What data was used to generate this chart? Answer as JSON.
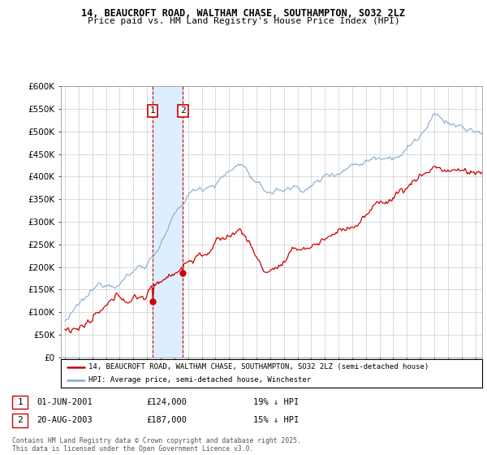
{
  "title1": "14, BEAUCROFT ROAD, WALTHAM CHASE, SOUTHAMPTON, SO32 2LZ",
  "title2": "Price paid vs. HM Land Registry's House Price Index (HPI)",
  "ylim": [
    0,
    600000
  ],
  "yticks": [
    0,
    50000,
    100000,
    150000,
    200000,
    250000,
    300000,
    350000,
    400000,
    450000,
    500000,
    550000,
    600000
  ],
  "xlim_start": 1994.7,
  "xlim_end": 2025.5,
  "sale1_date": 2001.42,
  "sale1_price": 124000,
  "sale2_date": 2003.63,
  "sale2_price": 187000,
  "legend_line1": "14, BEAUCROFT ROAD, WALTHAM CHASE, SOUTHAMPTON, SO32 2LZ (semi-detached house)",
  "legend_line2": "HPI: Average price, semi-detached house, Winchester",
  "annotation1_date": "01-JUN-2001",
  "annotation1_price": "£124,000",
  "annotation1_hpi": "19% ↓ HPI",
  "annotation2_date": "20-AUG-2003",
  "annotation2_price": "£187,000",
  "annotation2_hpi": "15% ↓ HPI",
  "footer": "Contains HM Land Registry data © Crown copyright and database right 2025.\nThis data is licensed under the Open Government Licence v3.0.",
  "line_color_sale": "#cc0000",
  "line_color_hpi": "#88aacc",
  "shade_color": "#ddeeff",
  "background_color": "#ffffff",
  "grid_color": "#cccccc"
}
